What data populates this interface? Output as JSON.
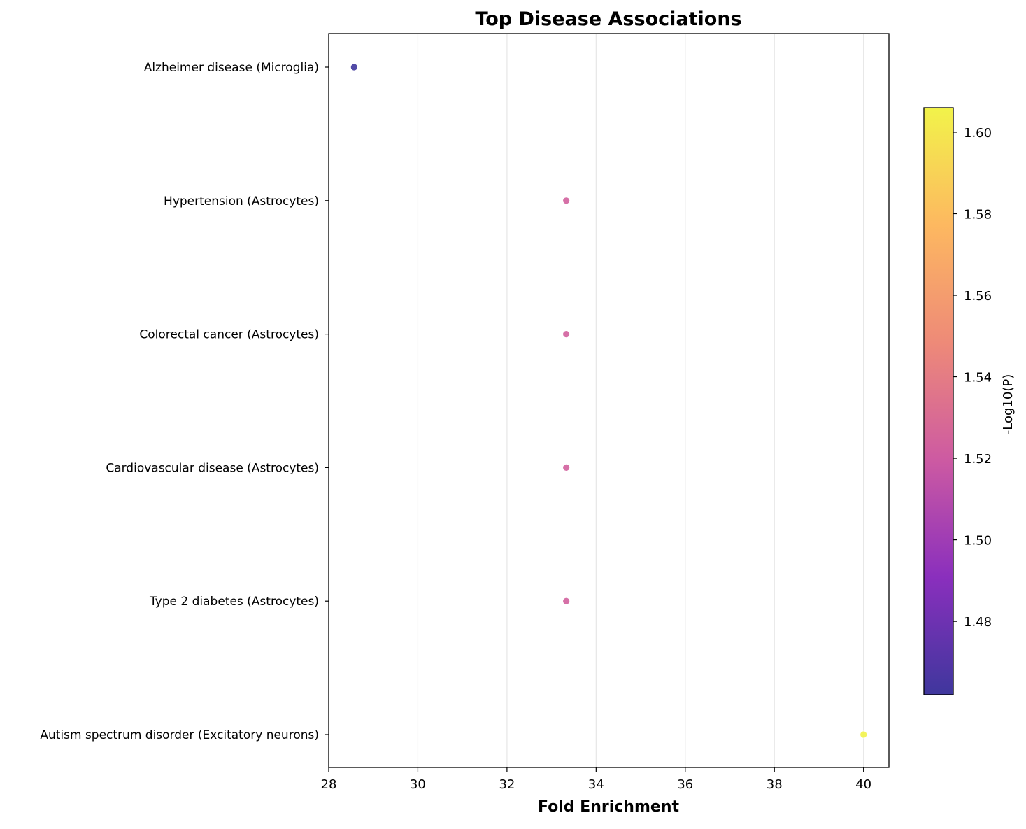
{
  "chart_data": {
    "type": "scatter",
    "title": "Top Disease Associations",
    "xlabel": "Fold Enrichment",
    "ylabel": "",
    "xlim": [
      28,
      40.57
    ],
    "x_ticks": [
      28,
      30,
      32,
      34,
      36,
      38,
      40
    ],
    "grid": "vertical",
    "categories": [
      "Alzheimer disease (Microglia)",
      "Hypertension (Astrocytes)",
      "Colorectal cancer (Astrocytes)",
      "Cardiovascular disease (Astrocytes)",
      "Type 2 diabetes (Astrocytes)",
      "Autism spectrum disorder (Excitatory neurons)"
    ],
    "points": [
      {
        "category": "Alzheimer disease (Microglia)",
        "x": 28.57,
        "neg_log10_p": 1.462
      },
      {
        "category": "Hypertension (Astrocytes)",
        "x": 33.33,
        "neg_log10_p": 1.523
      },
      {
        "category": "Colorectal cancer (Astrocytes)",
        "x": 33.33,
        "neg_log10_p": 1.523
      },
      {
        "category": "Cardiovascular disease (Astrocytes)",
        "x": 33.33,
        "neg_log10_p": 1.523
      },
      {
        "category": "Type 2 diabetes (Astrocytes)",
        "x": 33.33,
        "neg_log10_p": 1.523
      },
      {
        "category": "Autism spectrum disorder (Excitatory neurons)",
        "x": 40.0,
        "neg_log10_p": 1.606
      }
    ],
    "colorbar": {
      "label": "-Log10(P)",
      "colormap": "plasma",
      "range": [
        1.462,
        1.606
      ],
      "ticks": [
        "1.48",
        "1.50",
        "1.52",
        "1.54",
        "1.56",
        "1.58",
        "1.60"
      ],
      "colors": [
        "#3f379d",
        "#8a2fbd",
        "#cd5aa2",
        "#ee8a78",
        "#fdb860",
        "#f2f34a"
      ]
    }
  }
}
